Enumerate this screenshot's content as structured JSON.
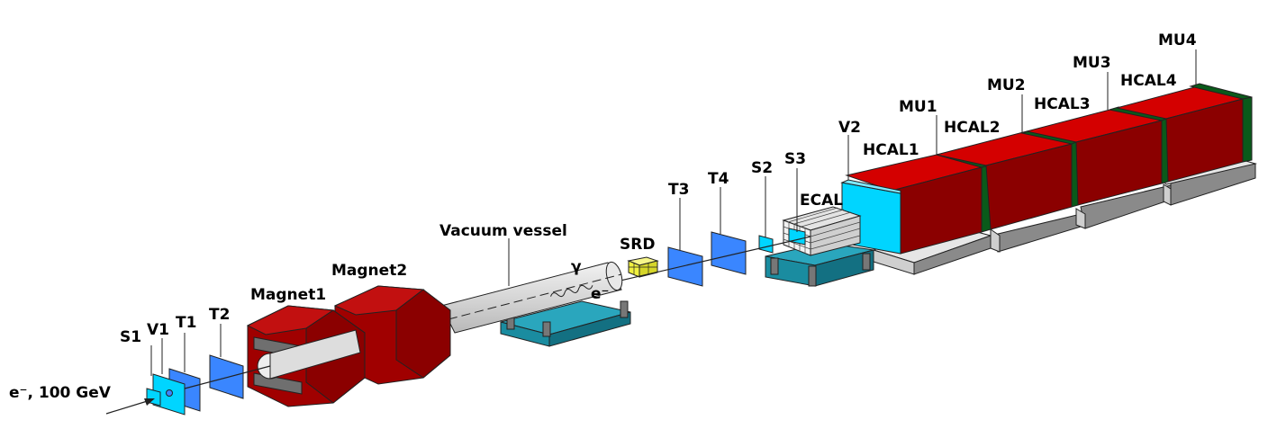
{
  "beam_label": "e⁻, 100 GeV",
  "labels": {
    "s1": "S1",
    "v1": "V1",
    "t1": "T1",
    "t2": "T2",
    "magnet1": "Magnet1",
    "magnet2": "Magnet2",
    "vacuum_vessel": "Vacuum vessel",
    "gamma": "γ",
    "electron": "e⁻",
    "srd": "SRD",
    "t3": "T3",
    "t4": "T4",
    "s2": "S2",
    "s3": "S3",
    "ecal": "ECAL",
    "v2": "V2",
    "hcal1": "HCAL1",
    "hcal2": "HCAL2",
    "hcal3": "HCAL3",
    "hcal4": "HCAL4",
    "mu1": "MU1",
    "mu2": "MU2",
    "mu3": "MU3",
    "mu4": "MU4"
  },
  "colors": {
    "counter_blue": "#3a86ff",
    "counter_cyan": "#00d5ff",
    "magnet_red": "#a00000",
    "hcal_red": "#d40000",
    "hcal_dark": "#8b0000",
    "mu_green": "#0a5a1a",
    "stand_teal": "#1a8ca0",
    "srd_yellow": "#f0f040",
    "vessel_grey": "#d8d8d8"
  }
}
